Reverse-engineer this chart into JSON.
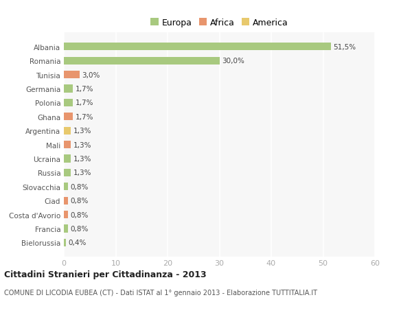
{
  "categories": [
    "Albania",
    "Romania",
    "Tunisia",
    "Germania",
    "Polonia",
    "Ghana",
    "Argentina",
    "Mali",
    "Ucraina",
    "Russia",
    "Slovacchia",
    "Ciad",
    "Costa d'Avorio",
    "Francia",
    "Bielorussia"
  ],
  "values": [
    51.5,
    30.0,
    3.0,
    1.7,
    1.7,
    1.7,
    1.3,
    1.3,
    1.3,
    1.3,
    0.8,
    0.8,
    0.8,
    0.8,
    0.4
  ],
  "labels": [
    "51,5%",
    "30,0%",
    "3,0%",
    "1,7%",
    "1,7%",
    "1,7%",
    "1,3%",
    "1,3%",
    "1,3%",
    "1,3%",
    "0,8%",
    "0,8%",
    "0,8%",
    "0,8%",
    "0,4%"
  ],
  "colors": [
    "#a8c97f",
    "#a8c97f",
    "#e8956d",
    "#a8c97f",
    "#a8c97f",
    "#e8956d",
    "#e8c96d",
    "#e8956d",
    "#a8c97f",
    "#a8c97f",
    "#a8c97f",
    "#e8956d",
    "#e8956d",
    "#a8c97f",
    "#a8c97f"
  ],
  "legend_labels": [
    "Europa",
    "Africa",
    "America"
  ],
  "legend_colors": [
    "#a8c97f",
    "#e8956d",
    "#e8c96d"
  ],
  "title": "Cittadini Stranieri per Cittadinanza - 2013",
  "subtitle": "COMUNE DI LICODIA EUBEA (CT) - Dati ISTAT al 1° gennaio 2013 - Elaborazione TUTTITALIA.IT",
  "xlim": [
    0,
    60
  ],
  "xticks": [
    0,
    10,
    20,
    30,
    40,
    50,
    60
  ],
  "bg_color": "#ffffff",
  "plot_bg_color": "#f7f7f7",
  "grid_color": "#ffffff"
}
